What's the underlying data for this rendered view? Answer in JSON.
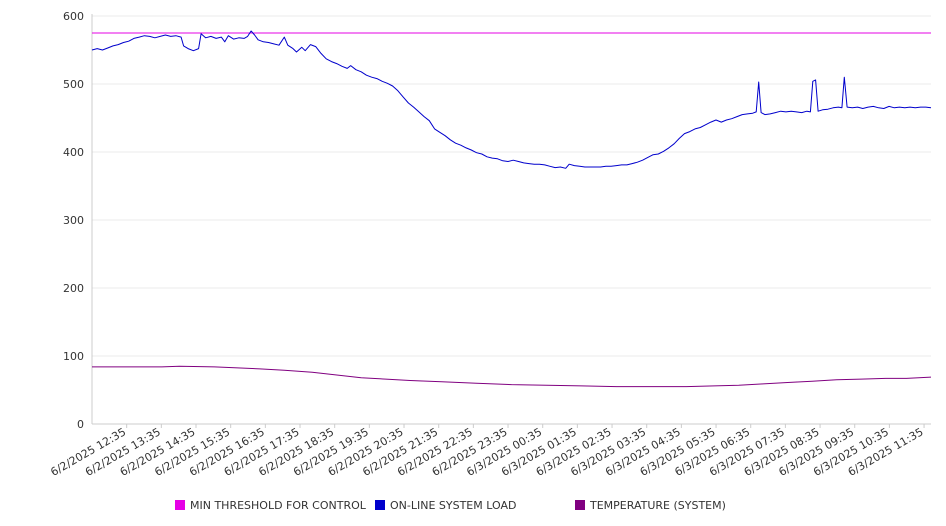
{
  "chart_data": {
    "type": "line",
    "title": "",
    "xlabel": "",
    "ylabel": "",
    "ylim": [
      0,
      600
    ],
    "yticks": [
      0,
      100,
      200,
      300,
      400,
      500,
      600
    ],
    "grid": true,
    "legend_position": "bottom",
    "x_tick_labels": [
      "6/2/2025 12:35",
      "6/2/2025 13:35",
      "6/2/2025 14:35",
      "6/2/2025 15:35",
      "6/2/2025 16:35",
      "6/2/2025 17:35",
      "6/2/2025 18:35",
      "6/2/2025 19:35",
      "6/2/2025 20:35",
      "6/2/2025 21:35",
      "6/2/2025 22:35",
      "6/2/2025 23:35",
      "6/3/2025 00:35",
      "6/3/2025 01:35",
      "6/3/2025 02:35",
      "6/3/2025 03:35",
      "6/3/2025 04:35",
      "6/3/2025 05:35",
      "6/3/2025 06:35",
      "6/3/2025 07:35",
      "6/3/2025 08:35",
      "6/3/2025 09:35",
      "6/3/2025 10:35",
      "6/3/2025 11:35"
    ],
    "x_hours": [
      0,
      24
    ],
    "series": [
      {
        "name": "MIN THRESHOLD FOR CONTROL",
        "color": "#e600e6",
        "points": [
          [
            0,
            575
          ],
          [
            24,
            575
          ]
        ]
      },
      {
        "name": "ON-LINE SYSTEM LOAD",
        "color": "#0000cc",
        "points": [
          [
            0.0,
            550
          ],
          [
            0.15,
            552
          ],
          [
            0.3,
            550
          ],
          [
            0.45,
            553
          ],
          [
            0.6,
            556
          ],
          [
            0.75,
            558
          ],
          [
            0.9,
            561
          ],
          [
            1.05,
            563
          ],
          [
            1.2,
            567
          ],
          [
            1.35,
            569
          ],
          [
            1.5,
            571
          ],
          [
            1.65,
            570
          ],
          [
            1.8,
            568
          ],
          [
            1.95,
            570
          ],
          [
            2.1,
            572
          ],
          [
            2.25,
            570
          ],
          [
            2.4,
            571
          ],
          [
            2.55,
            569
          ],
          [
            2.62,
            556
          ],
          [
            2.75,
            552
          ],
          [
            2.9,
            549
          ],
          [
            3.05,
            552
          ],
          [
            3.12,
            574
          ],
          [
            3.25,
            568
          ],
          [
            3.4,
            570
          ],
          [
            3.55,
            567
          ],
          [
            3.7,
            569
          ],
          [
            3.8,
            562
          ],
          [
            3.9,
            571
          ],
          [
            4.05,
            566
          ],
          [
            4.2,
            568
          ],
          [
            4.35,
            567
          ],
          [
            4.45,
            570
          ],
          [
            4.55,
            578
          ],
          [
            4.65,
            572
          ],
          [
            4.75,
            565
          ],
          [
            4.9,
            562
          ],
          [
            5.05,
            561
          ],
          [
            5.2,
            559
          ],
          [
            5.35,
            557
          ],
          [
            5.5,
            569
          ],
          [
            5.6,
            557
          ],
          [
            5.75,
            552
          ],
          [
            5.85,
            547
          ],
          [
            6.0,
            554
          ],
          [
            6.1,
            549
          ],
          [
            6.25,
            558
          ],
          [
            6.4,
            555
          ],
          [
            6.55,
            545
          ],
          [
            6.7,
            537
          ],
          [
            6.85,
            533
          ],
          [
            7.0,
            530
          ],
          [
            7.15,
            526
          ],
          [
            7.3,
            523
          ],
          [
            7.4,
            527
          ],
          [
            7.55,
            521
          ],
          [
            7.7,
            518
          ],
          [
            7.85,
            513
          ],
          [
            8.0,
            510
          ],
          [
            8.15,
            508
          ],
          [
            8.3,
            504
          ],
          [
            8.45,
            501
          ],
          [
            8.6,
            497
          ],
          [
            8.75,
            490
          ],
          [
            8.9,
            481
          ],
          [
            9.05,
            472
          ],
          [
            9.2,
            466
          ],
          [
            9.35,
            459
          ],
          [
            9.5,
            452
          ],
          [
            9.65,
            446
          ],
          [
            9.8,
            434
          ],
          [
            9.95,
            429
          ],
          [
            10.1,
            424
          ],
          [
            10.25,
            418
          ],
          [
            10.4,
            413
          ],
          [
            10.55,
            410
          ],
          [
            10.7,
            406
          ],
          [
            10.85,
            403
          ],
          [
            11.0,
            399
          ],
          [
            11.15,
            397
          ],
          [
            11.3,
            393
          ],
          [
            11.45,
            391
          ],
          [
            11.6,
            390
          ],
          [
            11.75,
            387
          ],
          [
            11.9,
            386
          ],
          [
            12.05,
            388
          ],
          [
            12.2,
            386
          ],
          [
            12.35,
            384
          ],
          [
            12.5,
            383
          ],
          [
            12.65,
            382
          ],
          [
            12.8,
            382
          ],
          [
            12.95,
            381
          ],
          [
            13.1,
            379
          ],
          [
            13.25,
            377
          ],
          [
            13.4,
            378
          ],
          [
            13.55,
            376
          ],
          [
            13.65,
            382
          ],
          [
            13.8,
            380
          ],
          [
            13.95,
            379
          ],
          [
            14.1,
            378
          ],
          [
            14.25,
            378
          ],
          [
            14.4,
            378
          ],
          [
            14.55,
            378
          ],
          [
            14.7,
            379
          ],
          [
            14.85,
            379
          ],
          [
            15.0,
            380
          ],
          [
            15.15,
            381
          ],
          [
            15.3,
            381
          ],
          [
            15.45,
            383
          ],
          [
            15.6,
            385
          ],
          [
            15.75,
            388
          ],
          [
            15.9,
            392
          ],
          [
            16.05,
            396
          ],
          [
            16.2,
            397
          ],
          [
            16.35,
            401
          ],
          [
            16.5,
            406
          ],
          [
            16.65,
            412
          ],
          [
            16.8,
            420
          ],
          [
            16.95,
            427
          ],
          [
            17.1,
            430
          ],
          [
            17.25,
            434
          ],
          [
            17.4,
            436
          ],
          [
            17.55,
            440
          ],
          [
            17.7,
            444
          ],
          [
            17.85,
            447
          ],
          [
            18.0,
            444
          ],
          [
            18.15,
            447
          ],
          [
            18.3,
            449
          ],
          [
            18.45,
            452
          ],
          [
            18.6,
            455
          ],
          [
            18.75,
            456
          ],
          [
            18.9,
            457
          ],
          [
            19.0,
            459
          ],
          [
            19.07,
            503
          ],
          [
            19.14,
            458
          ],
          [
            19.25,
            455
          ],
          [
            19.4,
            456
          ],
          [
            19.55,
            458
          ],
          [
            19.7,
            460
          ],
          [
            19.85,
            459
          ],
          [
            20.0,
            460
          ],
          [
            20.15,
            459
          ],
          [
            20.3,
            458
          ],
          [
            20.45,
            460
          ],
          [
            20.55,
            459
          ],
          [
            20.62,
            504
          ],
          [
            20.7,
            506
          ],
          [
            20.77,
            460
          ],
          [
            20.9,
            462
          ],
          [
            21.05,
            463
          ],
          [
            21.2,
            465
          ],
          [
            21.35,
            466
          ],
          [
            21.45,
            465
          ],
          [
            21.52,
            510
          ],
          [
            21.6,
            466
          ],
          [
            21.75,
            465
          ],
          [
            21.9,
            466
          ],
          [
            22.05,
            464
          ],
          [
            22.2,
            466
          ],
          [
            22.35,
            467
          ],
          [
            22.5,
            465
          ],
          [
            22.65,
            464
          ],
          [
            22.8,
            467
          ],
          [
            22.95,
            465
          ],
          [
            23.1,
            466
          ],
          [
            23.25,
            465
          ],
          [
            23.4,
            466
          ],
          [
            23.55,
            465
          ],
          [
            23.7,
            466
          ],
          [
            23.85,
            466
          ],
          [
            24.0,
            465
          ]
        ]
      },
      {
        "name": "TEMPERATURE (SYSTEM)",
        "color": "#800080",
        "points": [
          [
            0.0,
            84
          ],
          [
            1.0,
            84
          ],
          [
            2.0,
            84
          ],
          [
            2.5,
            85
          ],
          [
            3.5,
            84
          ],
          [
            4.0,
            83
          ],
          [
            4.8,
            81
          ],
          [
            5.5,
            79
          ],
          [
            6.3,
            76
          ],
          [
            7.0,
            72
          ],
          [
            7.7,
            68
          ],
          [
            8.4,
            66
          ],
          [
            9.1,
            64
          ],
          [
            10.0,
            62
          ],
          [
            11.0,
            60
          ],
          [
            12.0,
            58
          ],
          [
            13.0,
            57
          ],
          [
            14.0,
            56
          ],
          [
            15.0,
            55
          ],
          [
            16.0,
            55
          ],
          [
            17.0,
            55
          ],
          [
            17.8,
            56
          ],
          [
            18.5,
            57
          ],
          [
            19.2,
            59
          ],
          [
            19.9,
            61
          ],
          [
            20.6,
            63
          ],
          [
            21.3,
            65
          ],
          [
            22.0,
            66
          ],
          [
            22.7,
            67
          ],
          [
            23.3,
            67
          ],
          [
            24.0,
            69
          ]
        ]
      }
    ]
  }
}
